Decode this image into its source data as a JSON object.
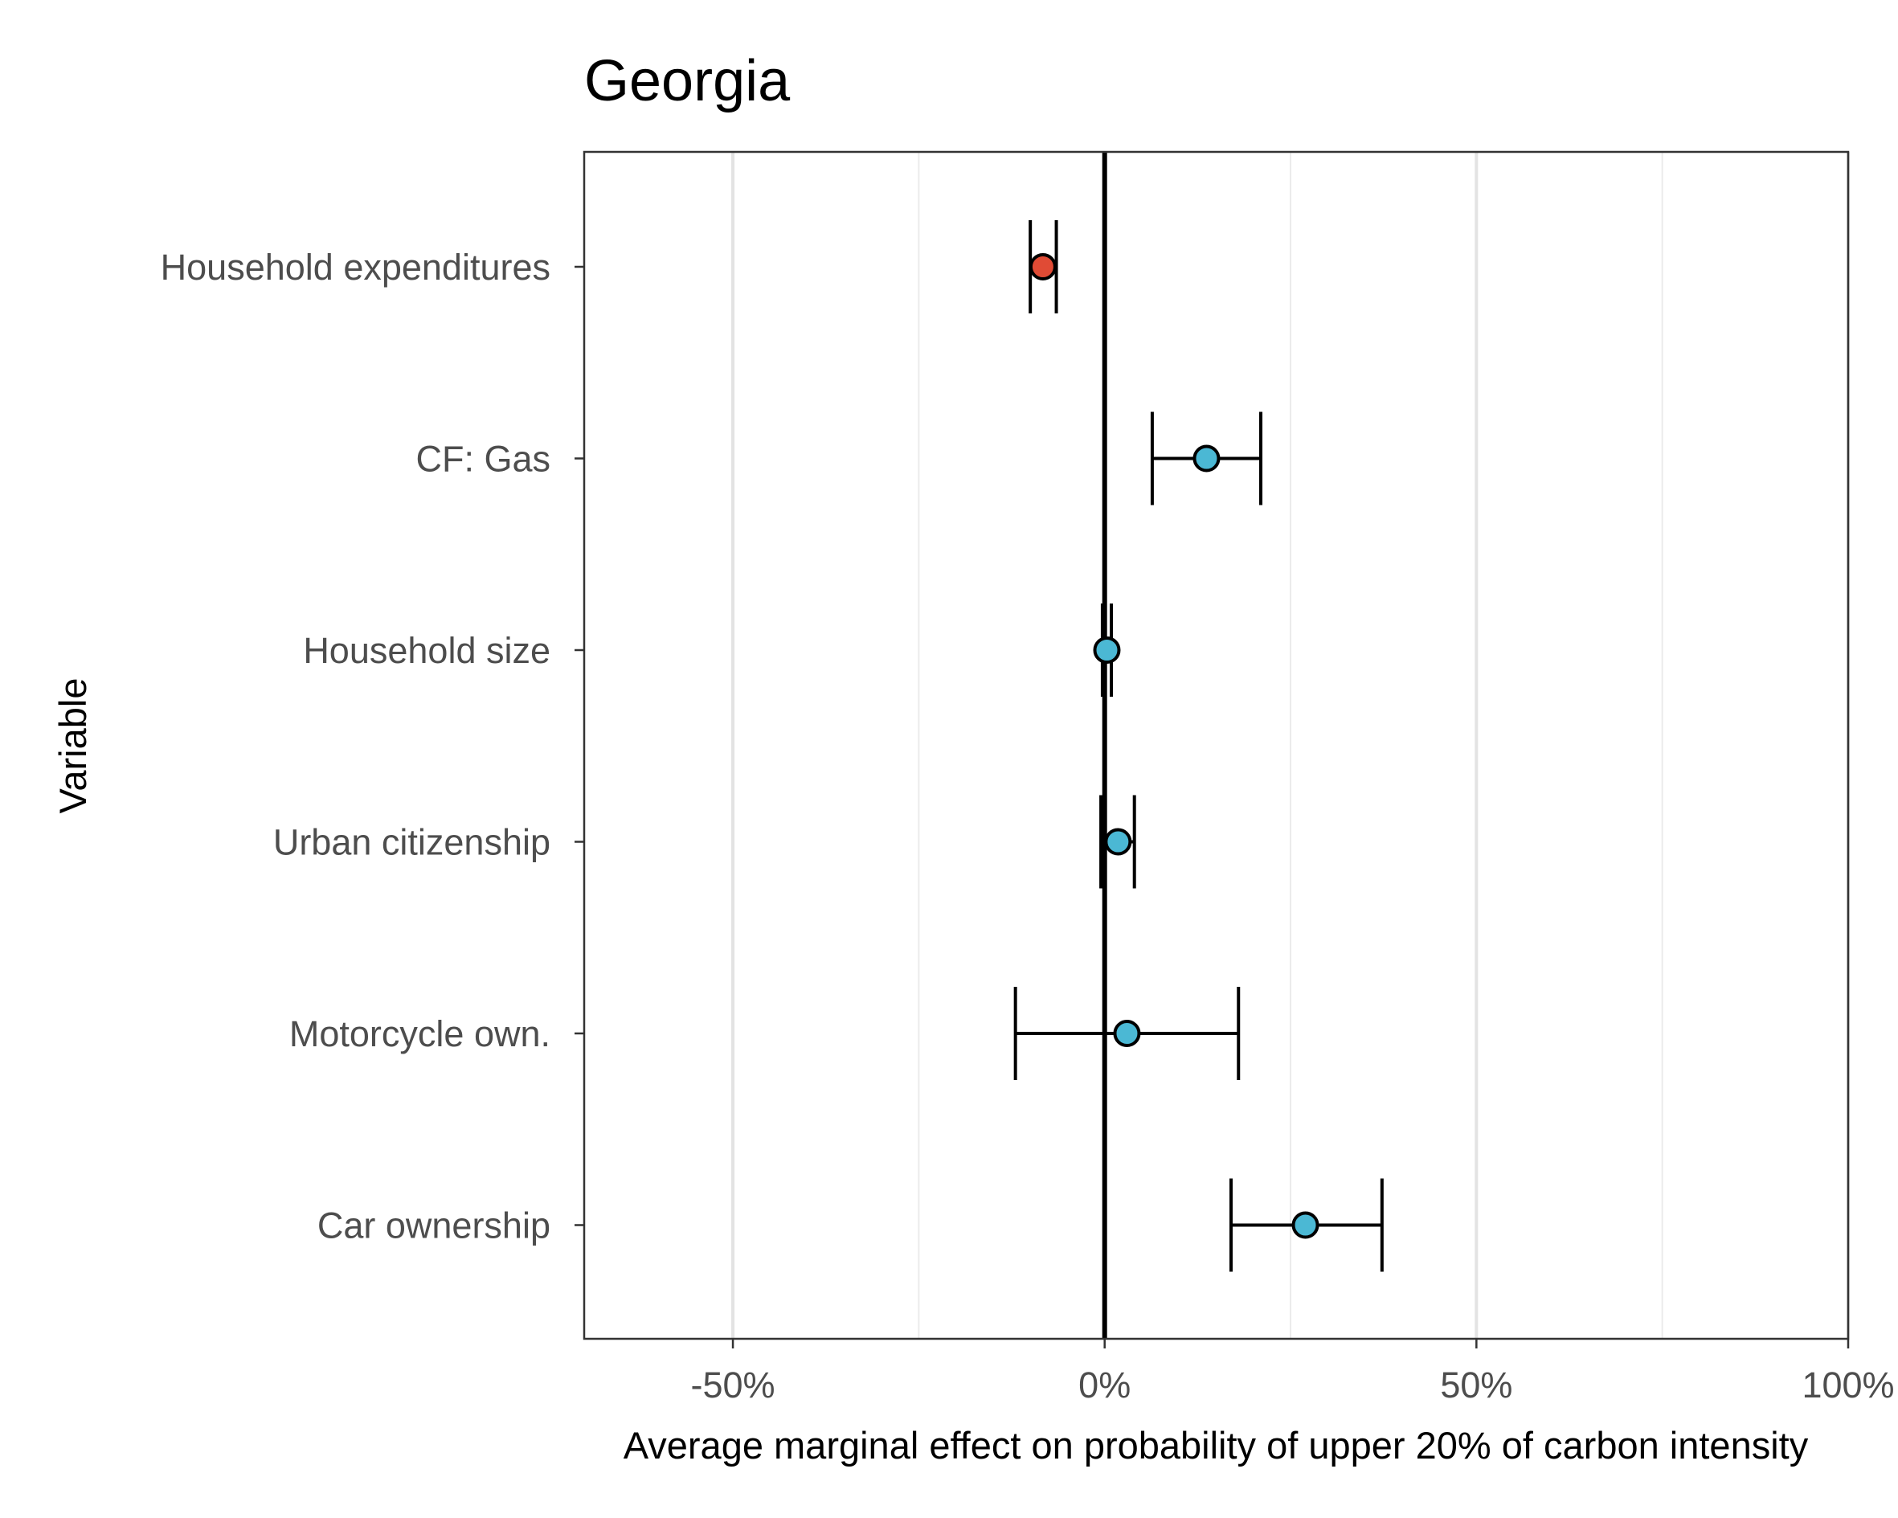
{
  "chart_data": {
    "type": "forest",
    "title": "Georgia",
    "xlabel": "Average marginal effect on probability of upper 20% of carbon intensity",
    "ylabel": "Variable",
    "xlim": [
      -0.7,
      1.0
    ],
    "x_ticks": [
      {
        "value": -0.5,
        "label": "-50%"
      },
      {
        "value": 0.0,
        "label": "0%"
      },
      {
        "value": 0.5,
        "label": "50%"
      },
      {
        "value": 1.0,
        "label": "100%"
      }
    ],
    "minor_grid": [
      -0.25,
      0.25,
      0.75
    ],
    "reference_line": 0.0,
    "grid": "vertical",
    "colors": {
      "negative": "#e04b35",
      "positive": "#4bb8d4"
    },
    "points": [
      {
        "label": "Household expenditures",
        "estimate": -0.083,
        "lower": -0.1,
        "upper": -0.065,
        "sign": "negative"
      },
      {
        "label": "CF: Gas",
        "estimate": 0.137,
        "lower": 0.064,
        "upper": 0.21,
        "sign": "positive"
      },
      {
        "label": "Household size",
        "estimate": 0.003,
        "lower": -0.003,
        "upper": 0.009,
        "sign": "positive"
      },
      {
        "label": "Urban citizenship",
        "estimate": 0.018,
        "lower": -0.005,
        "upper": 0.04,
        "sign": "positive"
      },
      {
        "label": "Motorcycle own.",
        "estimate": 0.03,
        "lower": -0.12,
        "upper": 0.18,
        "sign": "positive"
      },
      {
        "label": "Car ownership",
        "estimate": 0.27,
        "lower": 0.17,
        "upper": 0.373,
        "sign": "positive"
      }
    ]
  }
}
